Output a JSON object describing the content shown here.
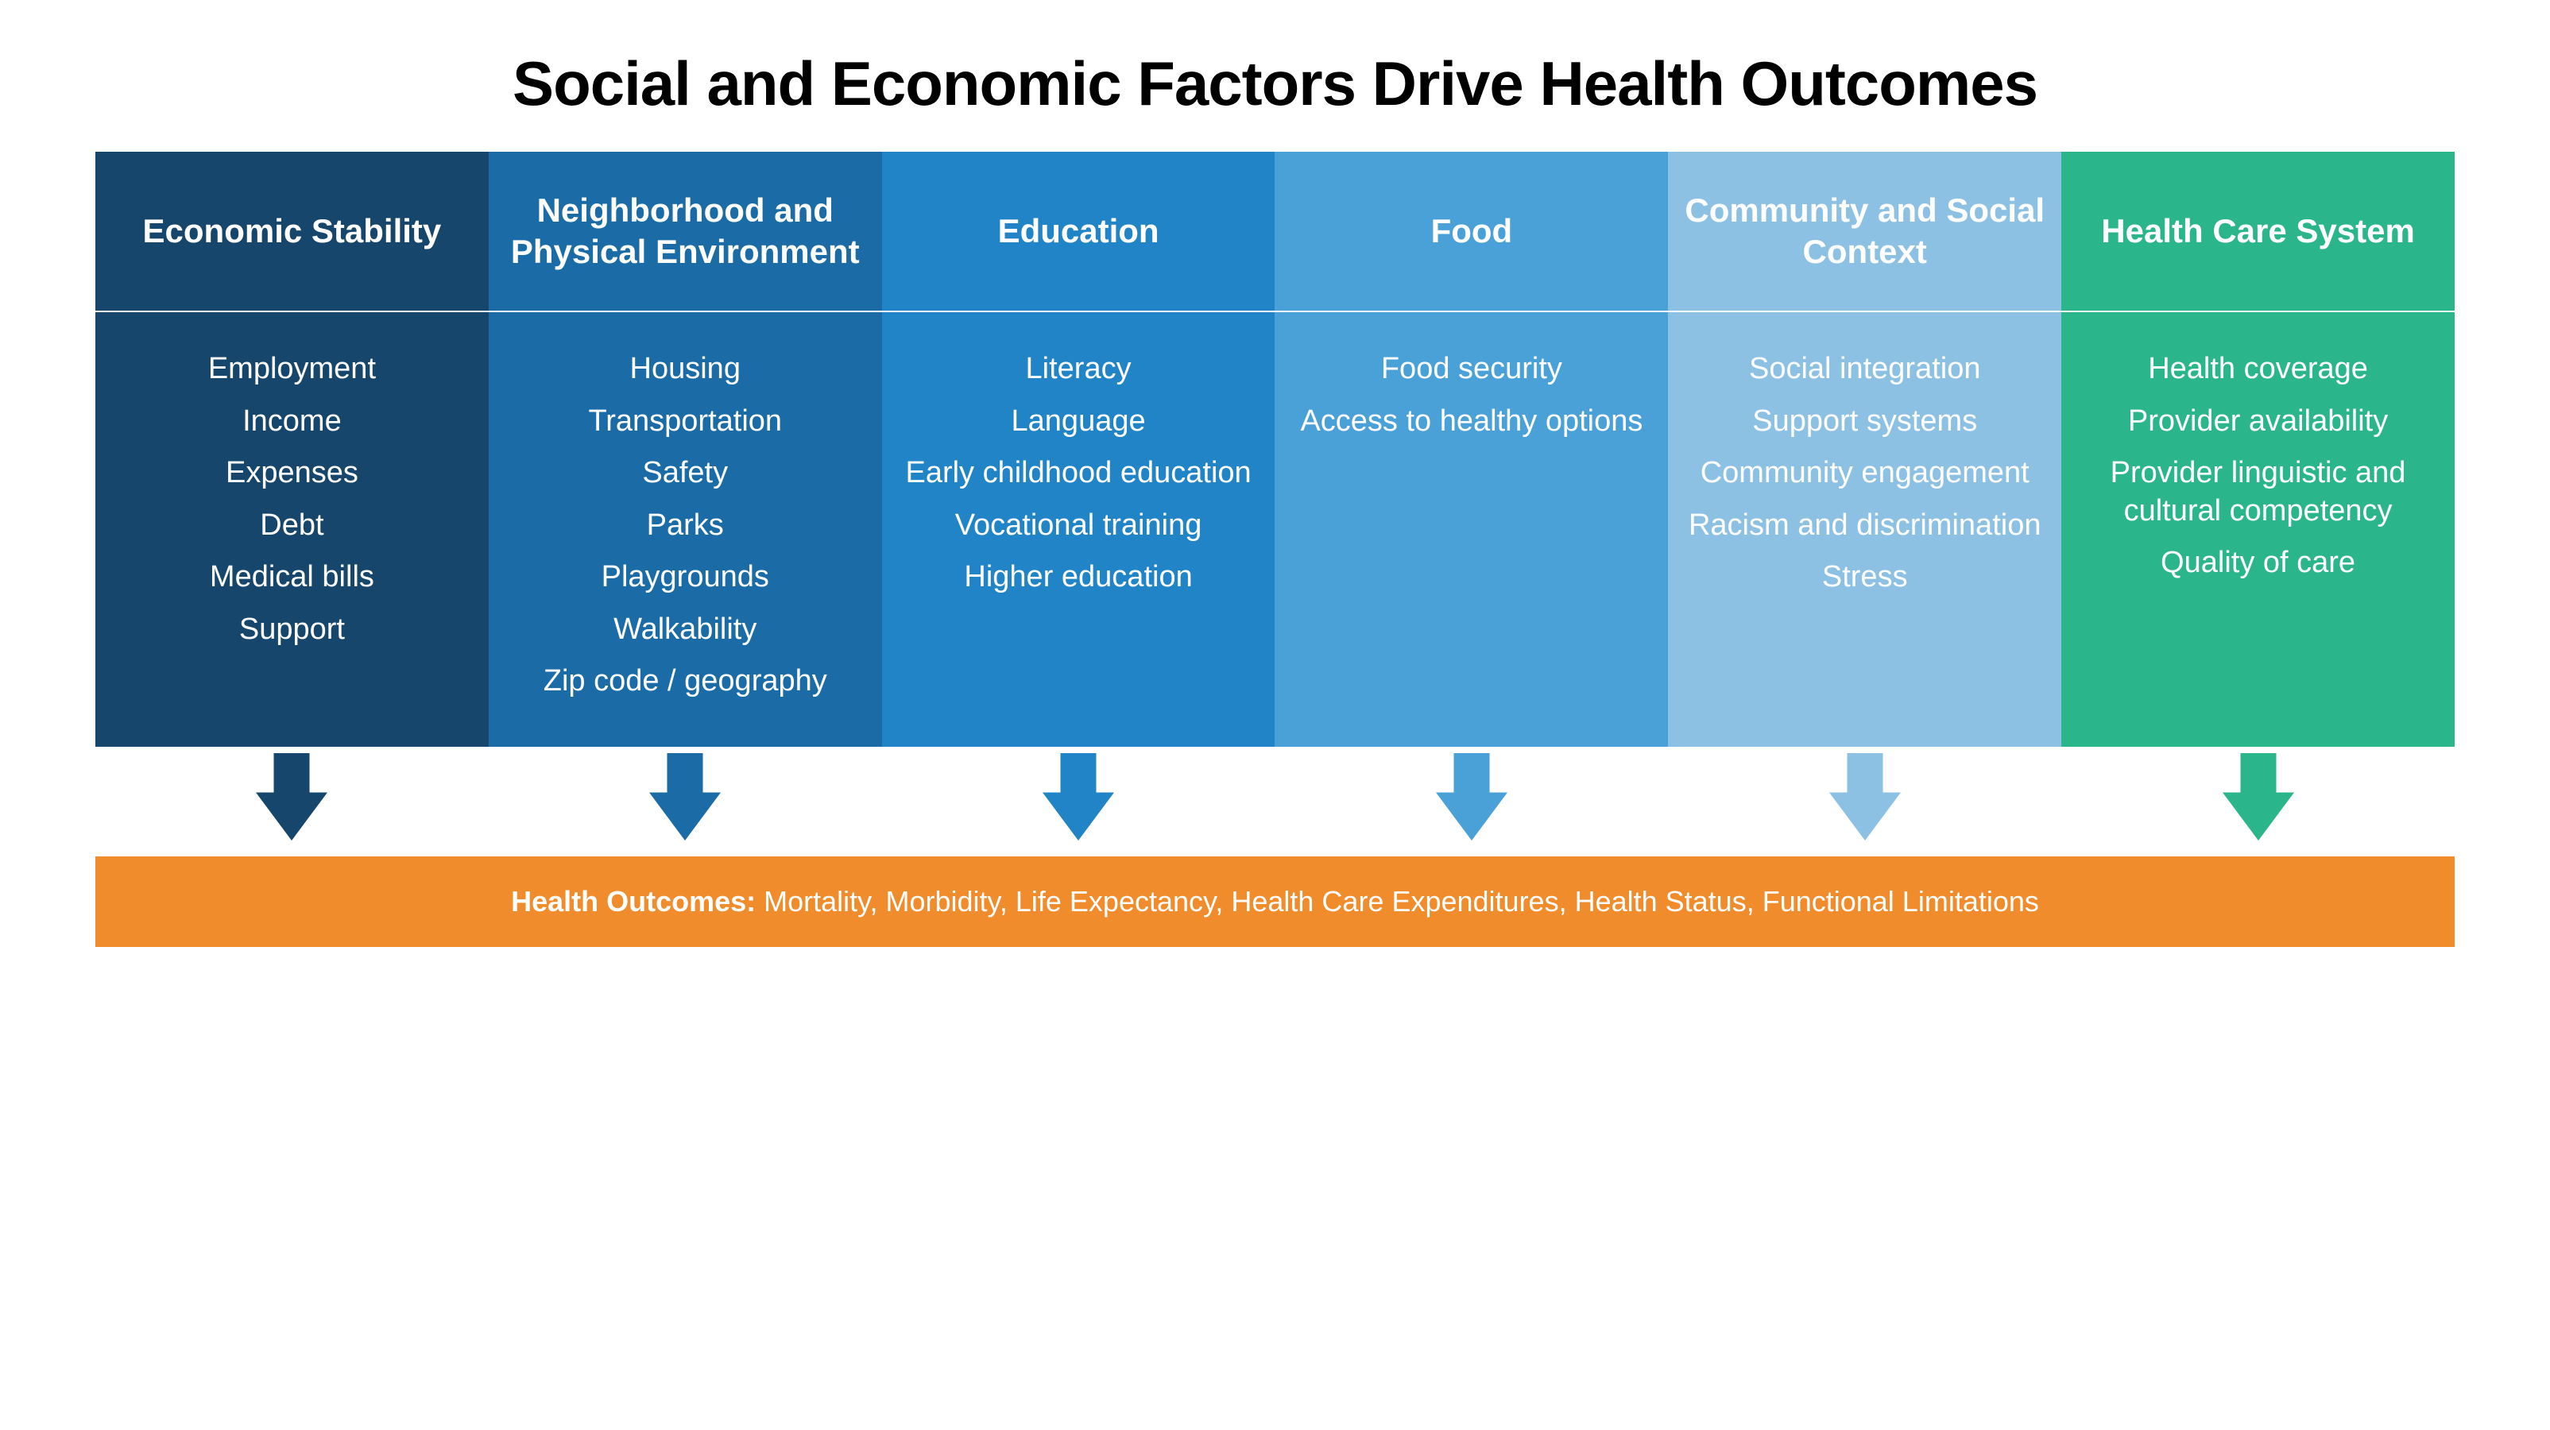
{
  "title": "Social and Economic Factors Drive Health Outcomes",
  "title_fontsize": 78,
  "title_color": "#000000",
  "header_fontsize": 42,
  "body_fontsize": 38,
  "outcomes_fontsize": 36,
  "header_divider_color": "#ffffff",
  "arrow_width": 90,
  "arrow_height": 110,
  "columns": [
    {
      "header": "Economic Stability",
      "color": "#16466b",
      "items": [
        "Employment",
        "Income",
        "Expenses",
        "Debt",
        "Medical bills",
        "Support"
      ]
    },
    {
      "header": "Neighborhood and Physical Environment",
      "color": "#1a6ba6",
      "items": [
        "Housing",
        "Transportation",
        "Safety",
        "Parks",
        "Playgrounds",
        "Walkability",
        "Zip code / geography"
      ]
    },
    {
      "header": "Education",
      "color": "#2184c6",
      "items": [
        "Literacy",
        "Language",
        "Early childhood education",
        "Vocational training",
        "Higher education"
      ]
    },
    {
      "header": "Food",
      "color": "#4aa1d8",
      "items": [
        "Food security",
        "Access to healthy options"
      ]
    },
    {
      "header": "Community and Social Context",
      "color": "#8dc1e4",
      "items": [
        "Social integration",
        "Support systems",
        "Community engagement",
        "Racism and discrimination",
        "Stress"
      ]
    },
    {
      "header": "Health Care System",
      "color": "#2bb58a",
      "items": [
        "Health coverage",
        "Provider availability",
        "Provider linguistic and cultural competency",
        "Quality of care"
      ]
    }
  ],
  "outcomes": {
    "background": "#f08c2c",
    "label": "Health Outcomes:",
    "text": "Mortality, Morbidity, Life Expectancy, Health Care Expenditures, Health Status, Functional Limitations"
  }
}
